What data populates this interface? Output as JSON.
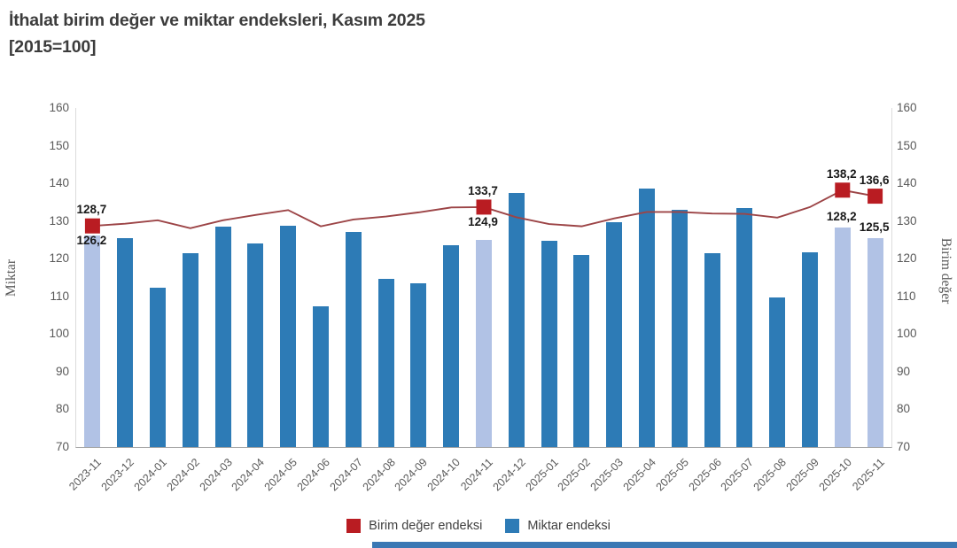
{
  "header": {
    "title": "İthalat birim değer ve miktar endeksleri, Kasım 2025",
    "subtitle": "[2015=100]"
  },
  "axes": {
    "left_title": "Miktar",
    "right_title": "Birim değer",
    "y_min": 70,
    "y_max": 160,
    "y_tick_step": 10
  },
  "legend": [
    {
      "label": "Birim değer endeksi",
      "color": "#b91c22",
      "series": "line"
    },
    {
      "label": "Miktar endeksi",
      "color": "#2d7bb6",
      "series": "bar"
    }
  ],
  "colors": {
    "bar_blue": "#2d7bb6",
    "bar_highlight": "#b1c2e5",
    "line_red": "#9c4446",
    "marker_red": "#b91c22",
    "axis_text": "#595959",
    "title_text": "#3c3c3c",
    "footer_strip": "#3a78b4"
  },
  "chart_data": {
    "type": "bar",
    "note": "combo chart: bars = Miktar endeksi (left axis), line with square markers = Birim değer endeksi (right axis)",
    "title": "İthalat birim değer ve miktar endeksleri, Kasım 2025 [2015=100]",
    "xlabel": "",
    "ylabel_left": "Miktar",
    "ylabel_right": "Birim değer",
    "ylim": [
      70,
      160
    ],
    "grid": false,
    "legend_position": "bottom",
    "categories": [
      "2023-11",
      "2023-12",
      "2024-01",
      "2024-02",
      "2024-03",
      "2024-04",
      "2024-05",
      "2024-06",
      "2024-07",
      "2024-08",
      "2024-09",
      "2024-10",
      "2024-11",
      "2024-12",
      "2025-01",
      "2025-02",
      "2025-03",
      "2025-04",
      "2025-05",
      "2025-06",
      "2025-07",
      "2025-08",
      "2025-09",
      "2025-10",
      "2025-11"
    ],
    "series": [
      {
        "name": "Miktar endeksi",
        "type": "bar",
        "values": [
          126.2,
          125.5,
          112.4,
          121.5,
          128.5,
          124.0,
          128.8,
          107.3,
          127.2,
          114.6,
          113.5,
          123.6,
          124.9,
          137.5,
          124.7,
          120.9,
          129.6,
          138.6,
          133.0,
          121.4,
          133.4,
          109.6,
          121.6,
          128.2,
          125.5
        ]
      },
      {
        "name": "Birim değer endeksi",
        "type": "line",
        "values": [
          128.7,
          129.3,
          130.2,
          128.1,
          130.2,
          131.6,
          132.9,
          128.6,
          130.4,
          131.2,
          132.3,
          133.6,
          133.7,
          131.0,
          129.2,
          128.6,
          130.7,
          132.4,
          132.4,
          132.0,
          131.9,
          130.9,
          133.7,
          138.2,
          136.6
        ]
      }
    ],
    "highlight_indices": [
      0,
      12,
      23,
      24
    ],
    "callouts": [
      {
        "index": 0,
        "category": "2023-11",
        "line_label": "128,7",
        "bar_label": "126,2"
      },
      {
        "index": 12,
        "category": "2024-11",
        "line_label": "133,7",
        "bar_label": "124,9"
      },
      {
        "index": 23,
        "category": "2025-10",
        "line_label": "138,2",
        "bar_label": "128,2"
      },
      {
        "index": 24,
        "category": "2025-11",
        "line_label": "136,6",
        "bar_label": "125,5"
      }
    ]
  }
}
